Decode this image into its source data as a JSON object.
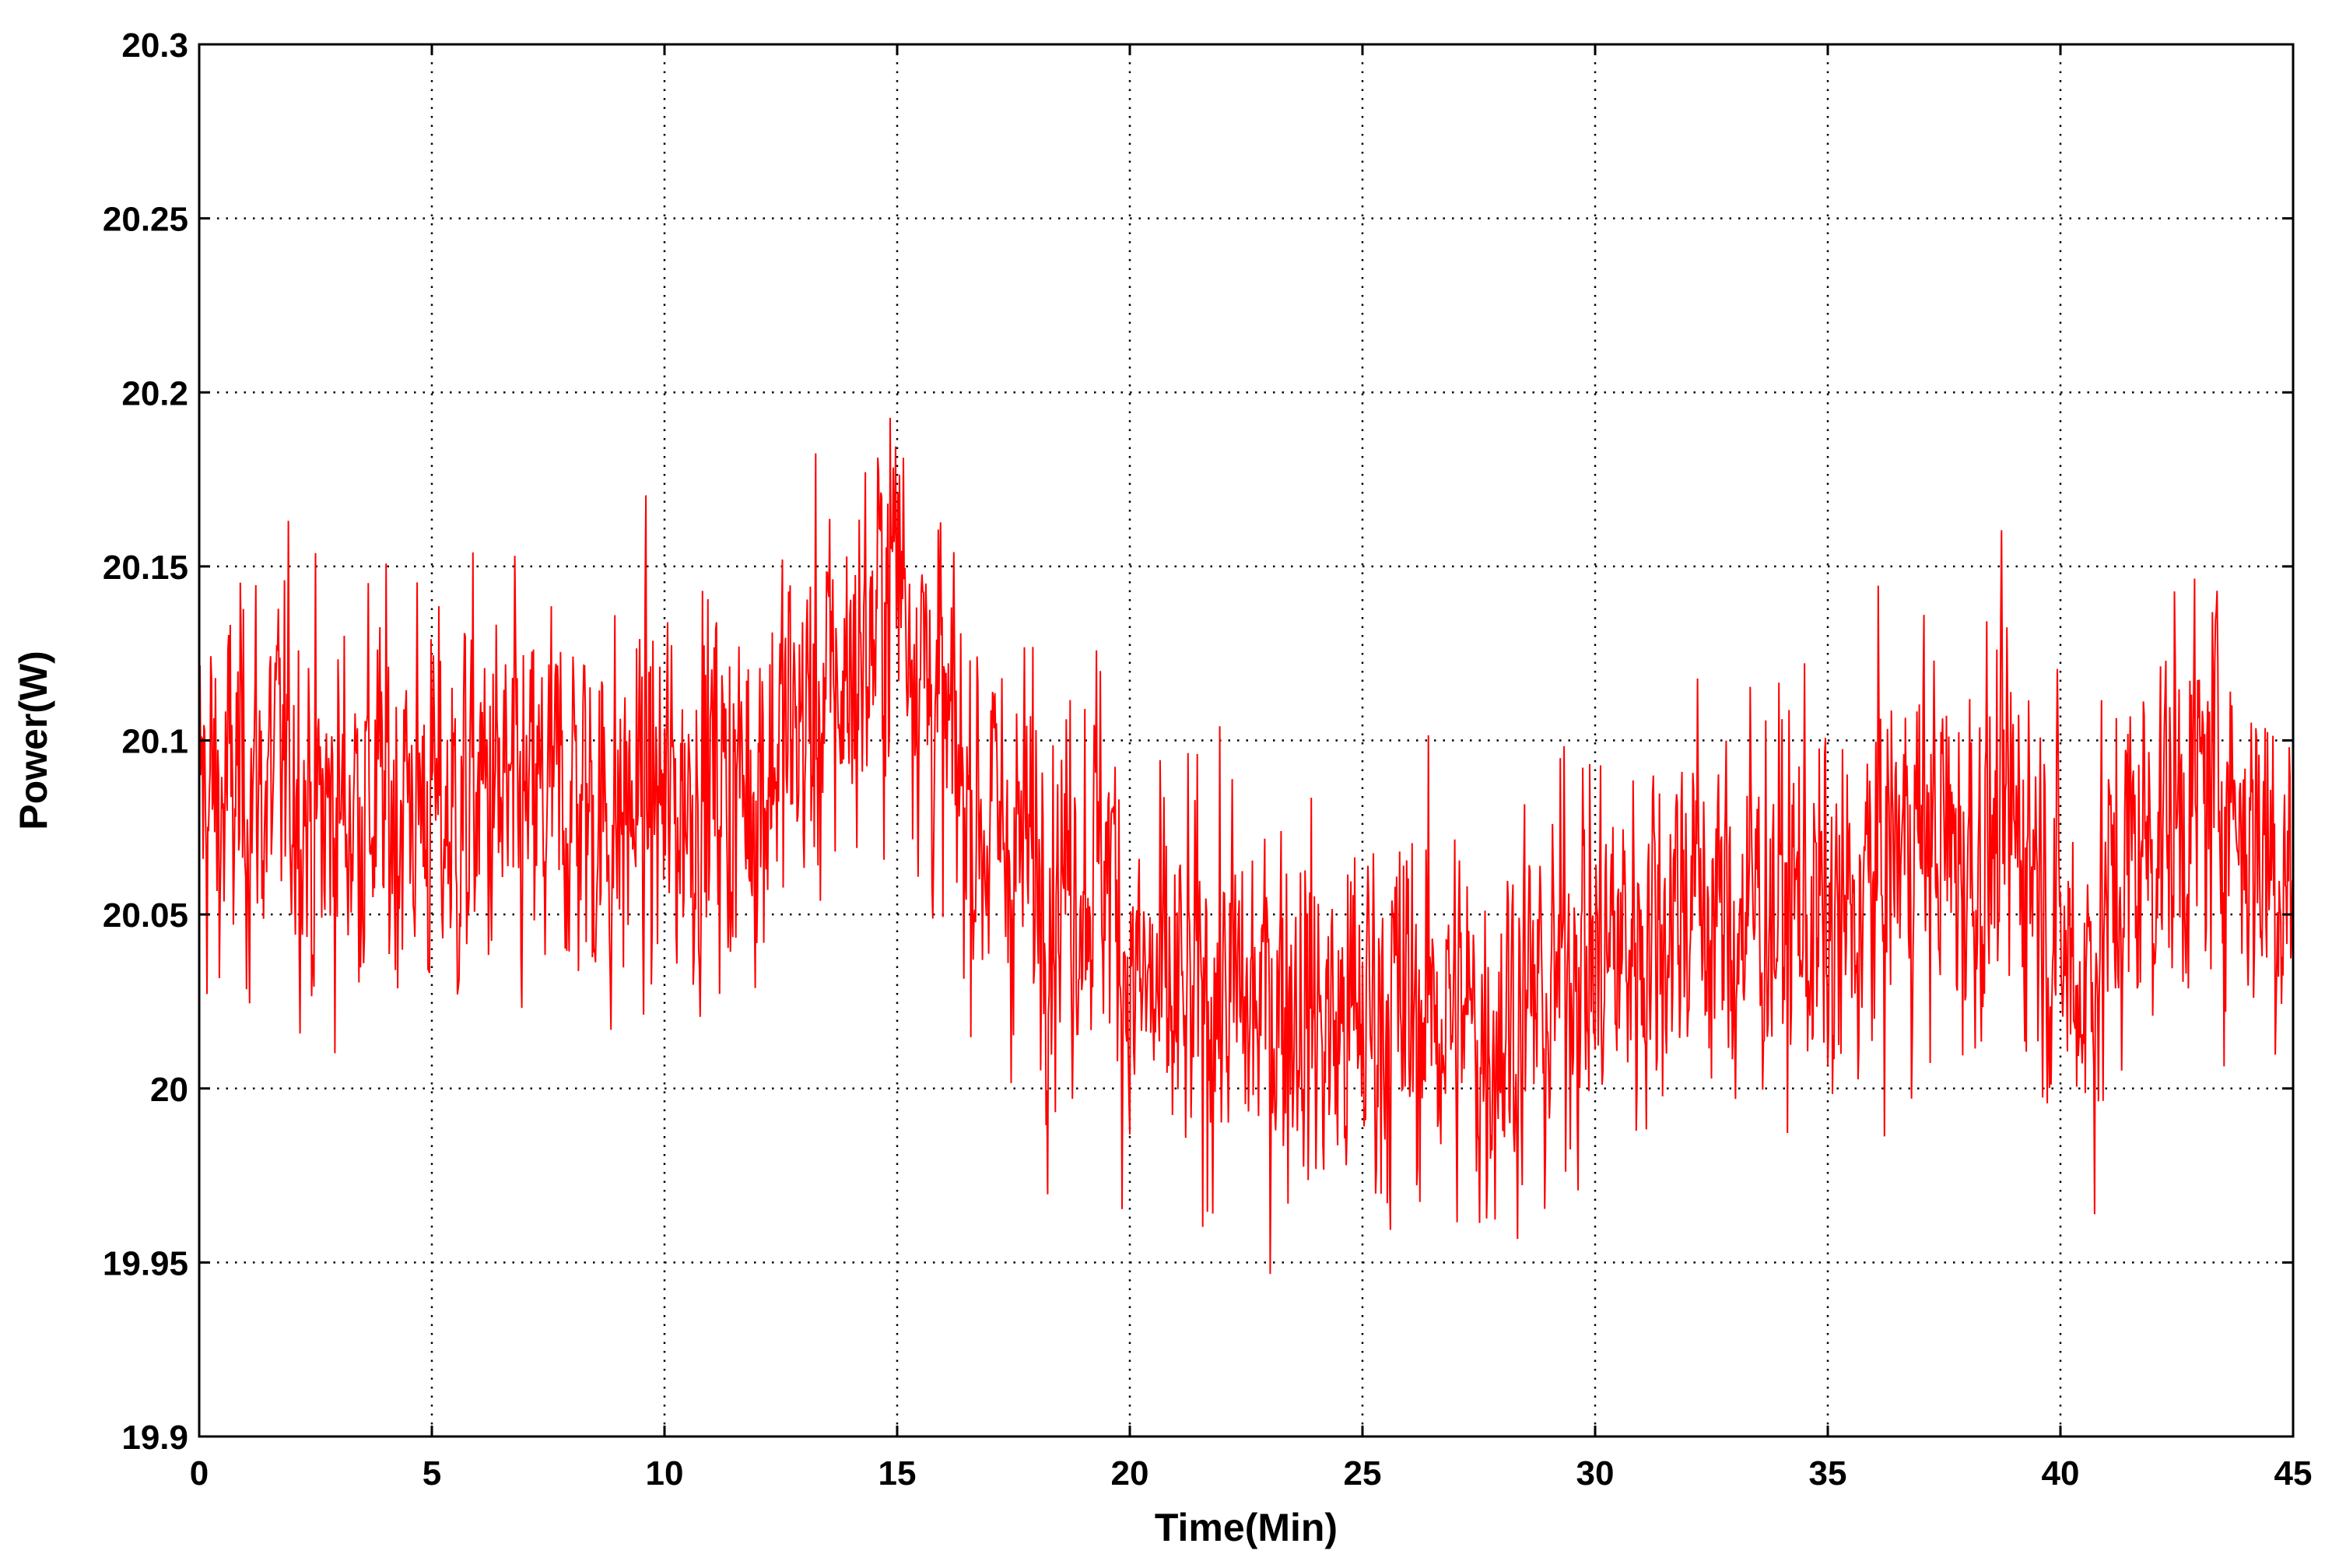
{
  "chart_data": {
    "type": "line",
    "title": "",
    "xlabel": "Time(Min)",
    "ylabel": "Power(W)",
    "xlim": [
      0,
      45
    ],
    "ylim": [
      19.9,
      20.3
    ],
    "xticks": [
      0,
      5,
      10,
      15,
      20,
      25,
      30,
      35,
      40,
      45
    ],
    "xtick_labels": [
      "0",
      "5",
      "10",
      "15",
      "20",
      "25",
      "30",
      "35",
      "40",
      "45"
    ],
    "yticks": [
      19.9,
      19.95,
      20,
      20.05,
      20.1,
      20.15,
      20.2,
      20.25,
      20.3
    ],
    "ytick_labels": [
      "19.9",
      "19.95",
      "20",
      "20.05",
      "20.1",
      "20.15",
      "20.2",
      "20.25",
      "20.3"
    ],
    "grid": true,
    "legend": "none",
    "series": [
      {
        "color": "#ff0000",
        "x": [
          0,
          0.5,
          1,
          1.5,
          2,
          2.5,
          3,
          3.5,
          4,
          4.5,
          5,
          5.5,
          6,
          6.5,
          7,
          7.5,
          8,
          8.5,
          9,
          9.5,
          10,
          10.5,
          11,
          11.5,
          12,
          12.5,
          13,
          13.5,
          14,
          14.5,
          15,
          15.5,
          16,
          16.5,
          17,
          17.5,
          18,
          18.5,
          19,
          19.5,
          20,
          20.5,
          21,
          21.5,
          22,
          22.5,
          23,
          23.5,
          24,
          24.5,
          25,
          25.5,
          26,
          26.5,
          27,
          27.5,
          28,
          28.5,
          29,
          29.5,
          30,
          30.5,
          31,
          31.5,
          32,
          32.5,
          33,
          33.5,
          34,
          34.5,
          35,
          35.5,
          36,
          36.5,
          37,
          37.5,
          38,
          38.5,
          39,
          39.5,
          40,
          40.5,
          41,
          41.5,
          42,
          42.5,
          43,
          43.5,
          44,
          44.5,
          45
        ],
        "y": [
          20.085,
          20.08,
          20.09,
          20.085,
          20.095,
          20.075,
          20.08,
          20.085,
          20.08,
          20.085,
          20.08,
          20.075,
          20.085,
          20.08,
          20.075,
          20.08,
          20.085,
          20.08,
          20.075,
          20.085,
          20.08,
          20.085,
          20.09,
          20.085,
          20.09,
          20.1,
          20.105,
          20.11,
          20.12,
          20.13,
          20.155,
          20.125,
          20.1,
          20.085,
          20.075,
          20.07,
          20.065,
          20.06,
          20.065,
          20.07,
          20.03,
          20.025,
          20.02,
          20.025,
          20.03,
          20.02,
          20.025,
          20.03,
          20.02,
          20.015,
          20.02,
          20.025,
          20.02,
          20.025,
          20.02,
          20.015,
          20.02,
          20.025,
          20.02,
          20.045,
          20.035,
          20.04,
          20.045,
          20.05,
          20.06,
          20.05,
          20.045,
          20.055,
          20.05,
          20.055,
          20.04,
          20.045,
          20.06,
          20.07,
          20.075,
          20.07,
          20.065,
          20.07,
          20.075,
          20.07,
          20.04,
          20.03,
          20.05,
          20.065,
          20.075,
          20.08,
          20.085,
          20.09,
          20.075,
          20.07,
          20.06
        ],
        "fluctuation_range": [
          19.93,
          20.215
        ]
      }
    ]
  }
}
